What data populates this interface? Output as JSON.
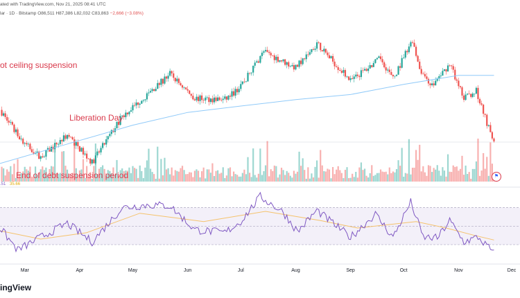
{
  "header": {
    "source": "ated with TradingView.com, Nov 21, 2025 08:41 UTC",
    "symbol": "lar · 1D · Bitstamp",
    "ohlc": "O86,511 H87,386 L82,032 C83,863",
    "change": "−2,666 (−3.08%)"
  },
  "rsi_legend": {
    "rsi_value": ".51",
    "ma_value": "35.66"
  },
  "annotations": {
    "debt_ceiling": "ot ceiling suspension",
    "liberation_day": "Liberation Day",
    "end_debt": "End of debt suspension period"
  },
  "brand": "ingView",
  "colors": {
    "up": "#26a69a",
    "down": "#ef5350",
    "ma": "#90caf9",
    "rsi": "#7e57c2",
    "rsi_ma": "#f5c26b",
    "annotation": "#d9394b"
  },
  "chart_data": [
    {
      "type": "candlestick",
      "title": "",
      "x_ticks": [
        "Mar",
        "Apr",
        "May",
        "Jun",
        "Jul",
        "Aug",
        "Sep",
        "Oct",
        "Nov",
        "Dec"
      ],
      "key_points": [
        {
          "date": "2025-02-15",
          "close": 97000
        },
        {
          "date": "2025-02-28",
          "close": 84300
        },
        {
          "date": "2025-03-10",
          "close": 78500
        },
        {
          "date": "2025-03-25",
          "close": 87200
        },
        {
          "date": "2025-04-08",
          "close": 76300
        },
        {
          "date": "2025-04-25",
          "close": 94500
        },
        {
          "date": "2025-05-10",
          "close": 103500
        },
        {
          "date": "2025-05-22",
          "close": 111000
        },
        {
          "date": "2025-06-05",
          "close": 101500
        },
        {
          "date": "2025-06-22",
          "close": 101000
        },
        {
          "date": "2025-07-01",
          "close": 106000
        },
        {
          "date": "2025-07-14",
          "close": 119800
        },
        {
          "date": "2025-08-01",
          "close": 113500
        },
        {
          "date": "2025-08-13",
          "close": 123000
        },
        {
          "date": "2025-09-01",
          "close": 108300
        },
        {
          "date": "2025-09-18",
          "close": 117200
        },
        {
          "date": "2025-09-25",
          "close": 109000
        },
        {
          "date": "2025-10-06",
          "close": 124500
        },
        {
          "date": "2025-10-10",
          "close": 113000
        },
        {
          "date": "2025-10-17",
          "close": 106500
        },
        {
          "date": "2025-10-27",
          "close": 115000
        },
        {
          "date": "2025-11-04",
          "close": 101500
        },
        {
          "date": "2025-11-11",
          "close": 104500
        },
        {
          "date": "2025-11-17",
          "close": 92000
        },
        {
          "date": "2025-11-21",
          "close": 83863
        }
      ],
      "moving_average": [
        {
          "date": "2025-02-15",
          "value": 76000
        },
        {
          "date": "2025-04-01",
          "value": 85000
        },
        {
          "date": "2025-05-01",
          "value": 91000
        },
        {
          "date": "2025-06-01",
          "value": 96000
        },
        {
          "date": "2025-07-01",
          "value": 98500
        },
        {
          "date": "2025-08-01",
          "value": 101000
        },
        {
          "date": "2025-09-01",
          "value": 103000
        },
        {
          "date": "2025-10-01",
          "value": 107000
        },
        {
          "date": "2025-11-01",
          "value": 110500
        },
        {
          "date": "2025-11-21",
          "value": 110500
        }
      ],
      "volume_panel": true,
      "grid": false
    },
    {
      "type": "line",
      "title": "",
      "series": [
        {
          "values": [
            {
              "date": "2025-02-15",
              "value": 48
            },
            {
              "date": "2025-02-25",
              "value": 24
            },
            {
              "date": "2025-03-10",
              "value": 38
            },
            {
              "date": "2025-03-25",
              "value": 53
            },
            {
              "date": "2025-04-08",
              "value": 33
            },
            {
              "date": "2025-04-25",
              "value": 70
            },
            {
              "date": "2025-05-10",
              "value": 73
            },
            {
              "date": "2025-05-22",
              "value": 72
            },
            {
              "date": "2025-06-05",
              "value": 46
            },
            {
              "date": "2025-06-22",
              "value": 43
            },
            {
              "date": "2025-07-01",
              "value": 55
            },
            {
              "date": "2025-07-12",
              "value": 82
            },
            {
              "date": "2025-07-25",
              "value": 65
            },
            {
              "date": "2025-08-02",
              "value": 44
            },
            {
              "date": "2025-08-13",
              "value": 67
            },
            {
              "date": "2025-09-01",
              "value": 38
            },
            {
              "date": "2025-09-15",
              "value": 63
            },
            {
              "date": "2025-09-25",
              "value": 38
            },
            {
              "date": "2025-10-05",
              "value": 76
            },
            {
              "date": "2025-10-12",
              "value": 38
            },
            {
              "date": "2025-10-20",
              "value": 37
            },
            {
              "date": "2025-10-27",
              "value": 56
            },
            {
              "date": "2025-11-04",
              "value": 33
            },
            {
              "date": "2025-11-12",
              "value": 38
            },
            {
              "date": "2025-11-21",
              "value": 21
            }
          ]
        },
        {
          "values": [
            {
              "date": "2025-02-15",
              "value": 45
            },
            {
              "date": "2025-03-10",
              "value": 36
            },
            {
              "date": "2025-04-05",
              "value": 43
            },
            {
              "date": "2025-05-05",
              "value": 64
            },
            {
              "date": "2025-06-10",
              "value": 55
            },
            {
              "date": "2025-07-15",
              "value": 66
            },
            {
              "date": "2025-08-15",
              "value": 56
            },
            {
              "date": "2025-09-05",
              "value": 48
            },
            {
              "date": "2025-10-08",
              "value": 55
            },
            {
              "date": "2025-10-25",
              "value": 48
            },
            {
              "date": "2025-11-10",
              "value": 40
            },
            {
              "date": "2025-11-21",
              "value": 35
            }
          ]
        }
      ],
      "bands": [
        30,
        50,
        70
      ],
      "ylim": [
        15,
        90
      ]
    }
  ]
}
